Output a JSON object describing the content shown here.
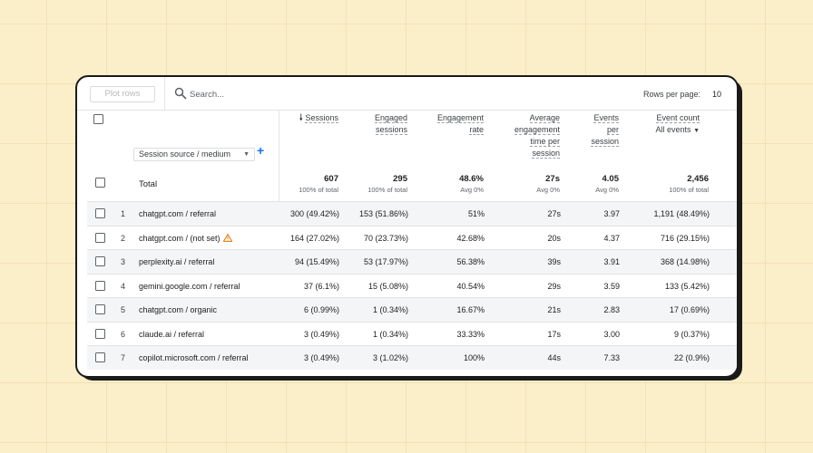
{
  "toolbar": {
    "plot_rows_label": "Plot rows",
    "search_placeholder": "Search...",
    "rows_per_page_label": "Rows per page:",
    "rows_per_page_value": "10"
  },
  "dimension": {
    "select_label": "Session source / medium"
  },
  "columns": [
    {
      "label": "Sessions",
      "sorted": true
    },
    {
      "label": "Engaged sessions"
    },
    {
      "label": "Engagement rate"
    },
    {
      "label": "Average engagement time per session"
    },
    {
      "label": "Events per session"
    },
    {
      "label": "Event count",
      "sub": "All events"
    }
  ],
  "totals": {
    "label": "Total",
    "values": [
      {
        "value": "607",
        "sub": "100% of total"
      },
      {
        "value": "295",
        "sub": "100% of total"
      },
      {
        "value": "48.6%",
        "sub": "Avg 0%"
      },
      {
        "value": "27s",
        "sub": "Avg 0%"
      },
      {
        "value": "4.05",
        "sub": "Avg 0%"
      },
      {
        "value": "2,456",
        "sub": "100% of total"
      }
    ]
  },
  "rows": [
    {
      "index": "1",
      "source": "chatgpt.com / referral",
      "warning": false,
      "cells": [
        "300 (49.42%)",
        "153 (51.86%)",
        "51%",
        "27s",
        "3.97",
        "1,191 (48.49%)"
      ]
    },
    {
      "index": "2",
      "source": "chatgpt.com / (not set)",
      "warning": true,
      "cells": [
        "164 (27.02%)",
        "70 (23.73%)",
        "42.68%",
        "20s",
        "4.37",
        "716 (29.15%)"
      ]
    },
    {
      "index": "3",
      "source": "perplexity.ai / referral",
      "warning": false,
      "cells": [
        "94 (15.49%)",
        "53 (17.97%)",
        "56.38%",
        "39s",
        "3.91",
        "368 (14.98%)"
      ]
    },
    {
      "index": "4",
      "source": "gemini.google.com / referral",
      "warning": false,
      "cells": [
        "37 (6.1%)",
        "15 (5.08%)",
        "40.54%",
        "29s",
        "3.59",
        "133 (5.42%)"
      ]
    },
    {
      "index": "5",
      "source": "chatgpt.com / organic",
      "warning": false,
      "cells": [
        "6 (0.99%)",
        "1 (0.34%)",
        "16.67%",
        "21s",
        "2.83",
        "17 (0.69%)"
      ]
    },
    {
      "index": "6",
      "source": "claude.ai / referral",
      "warning": false,
      "cells": [
        "3 (0.49%)",
        "1 (0.34%)",
        "33.33%",
        "17s",
        "3.00",
        "9 (0.37%)"
      ]
    },
    {
      "index": "7",
      "source": "copilot.microsoft.com / referral",
      "warning": false,
      "cells": [
        "3 (0.49%)",
        "3 (1.02%)",
        "100%",
        "44s",
        "7.33",
        "22 (0.9%)"
      ]
    }
  ],
  "colors": {
    "background": "#fbefc9",
    "accent": "#1a73e8",
    "warning": "#e37400",
    "row_shade": "#f4f5f7"
  }
}
